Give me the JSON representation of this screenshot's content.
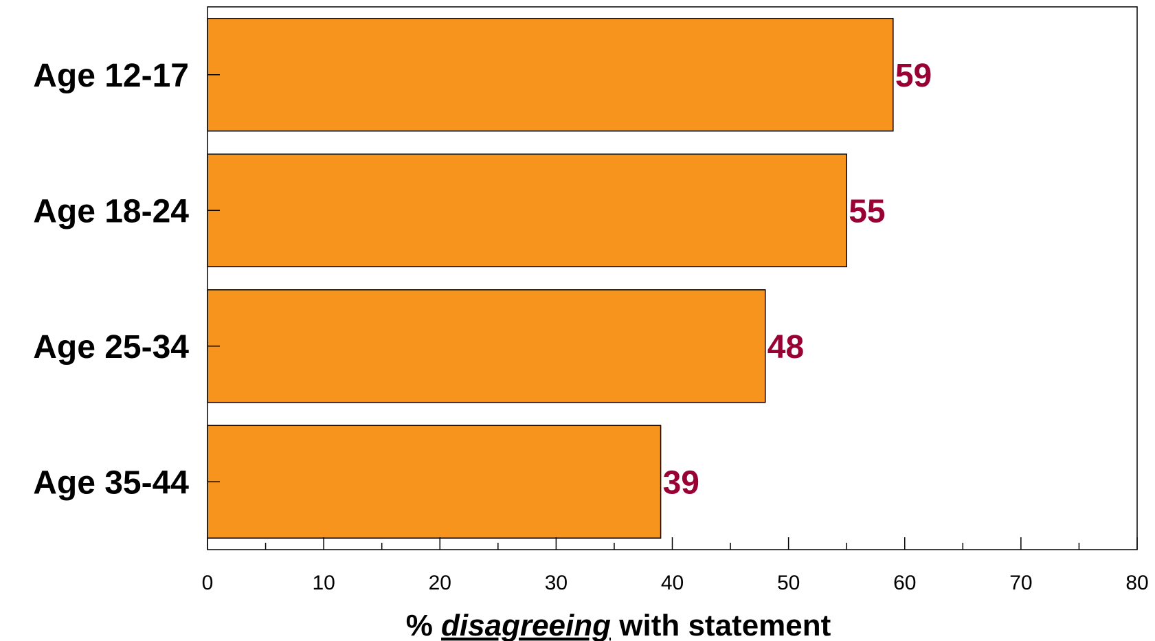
{
  "chart_data": {
    "type": "bar",
    "orientation": "horizontal",
    "categories": [
      "Age 12-17",
      "Age 18-24",
      "Age 25-34",
      "Age 35-44"
    ],
    "values": [
      59,
      55,
      48,
      39
    ],
    "value_labels": [
      "59",
      "55",
      "48",
      "39"
    ],
    "title": "",
    "xlabel_parts": [
      "% ",
      "disagreeing",
      " with statement"
    ],
    "ylabel": "",
    "xlim": [
      0,
      80
    ],
    "xticks": [
      0,
      10,
      20,
      30,
      40,
      50,
      60,
      70,
      80
    ],
    "grid": false,
    "legend": "none"
  },
  "colors": {
    "bar_fill": "#F7941D",
    "bar_stroke": "#000000",
    "value_label": "#990033",
    "axis": "#000000"
  }
}
